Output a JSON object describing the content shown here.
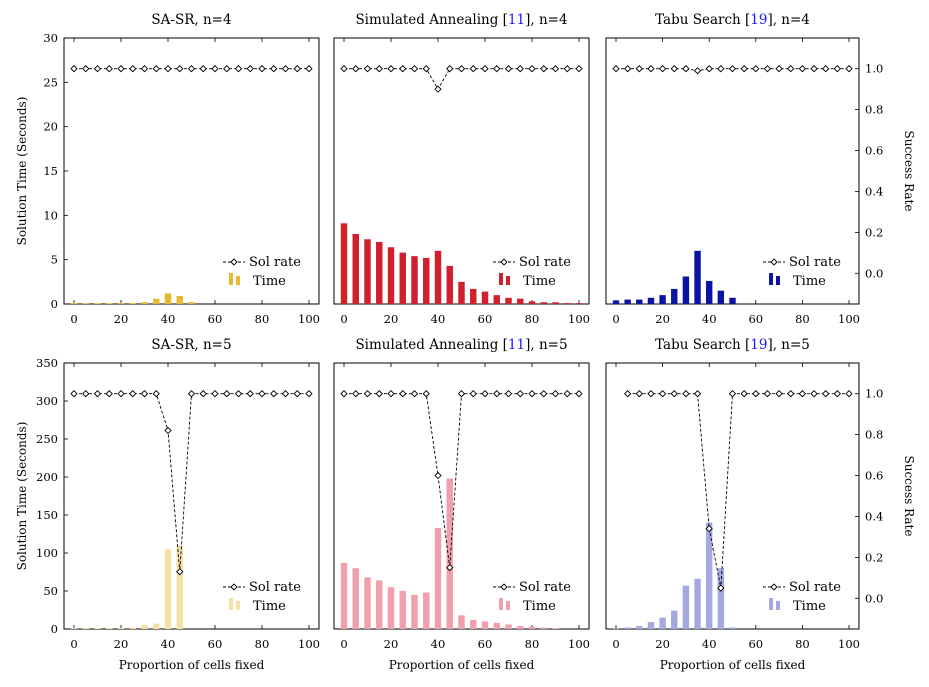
{
  "x_axis_title": "Proportion of cells fixed",
  "y_left_title": "Solution Time (Seconds)",
  "y_right_title": "Success Rate",
  "legend": {
    "sol_rate": "Sol rate",
    "time": "Time"
  },
  "colors": {
    "sasr": "#e8b830",
    "sa": "#d0202e",
    "tabu": "#0a14a0",
    "sasr_light": "#f5e0a8",
    "sa_light": "#f0a0ac",
    "tabu_light": "#a4a8e0",
    "line": "#000000"
  },
  "chart_data": [
    {
      "type": "bar",
      "title_pre": "SA-SR, n=4",
      "cite": "",
      "title_post": "",
      "row": "top",
      "color": "sasr",
      "x": [
        0,
        5,
        10,
        15,
        20,
        25,
        30,
        35,
        40,
        45,
        50,
        55,
        60,
        65,
        70,
        75,
        80,
        85,
        90,
        95,
        100
      ],
      "time": [
        0.05,
        0.05,
        0.05,
        0.05,
        0.1,
        0.1,
        0.2,
        0.6,
        1.2,
        0.9,
        0.2,
        0,
        0,
        0,
        0,
        0,
        0,
        0,
        0,
        0,
        0
      ],
      "time_x": [
        0,
        5,
        10,
        15,
        20,
        25,
        30,
        35,
        40,
        45,
        50
      ],
      "time_vals": [
        0.05,
        0.05,
        0.05,
        0.05,
        0.1,
        0.1,
        0.2,
        0.6,
        1.2,
        0.9,
        0.2
      ],
      "sol_x": [
        0,
        5,
        10,
        15,
        20,
        25,
        30,
        35,
        40,
        45,
        50,
        55,
        60,
        65,
        70,
        75,
        80,
        85,
        90,
        95,
        100
      ],
      "sol_rate": [
        1,
        1,
        1,
        1,
        1,
        1,
        1,
        1,
        1,
        1,
        1,
        1,
        1,
        1,
        1,
        1,
        1,
        1,
        1,
        1,
        1
      ],
      "ylim": [
        0,
        30
      ],
      "y2lim": [
        -0.15,
        1.15
      ]
    },
    {
      "type": "bar",
      "title_pre": "Simulated Annealing [",
      "cite": "11",
      "title_post": "], n=4",
      "row": "top",
      "color": "sa",
      "time_x": [
        0,
        5,
        10,
        15,
        20,
        25,
        30,
        35,
        40,
        45,
        50,
        55,
        60,
        65,
        70,
        75,
        80,
        85,
        90,
        95,
        100
      ],
      "time_vals": [
        9.1,
        7.9,
        7.3,
        7.0,
        6.4,
        5.8,
        5.4,
        5.2,
        6.0,
        4.3,
        2.5,
        1.7,
        1.4,
        1.0,
        0.7,
        0.6,
        0.3,
        0.2,
        0.2,
        0.1,
        0.1
      ],
      "sol_x": [
        0,
        5,
        10,
        15,
        20,
        25,
        30,
        35,
        40,
        45,
        50,
        55,
        60,
        65,
        70,
        75,
        80,
        85,
        90,
        95,
        100
      ],
      "sol_rate": [
        1,
        1,
        1,
        1,
        1,
        1,
        1,
        1,
        0.9,
        1,
        1,
        1,
        1,
        1,
        1,
        1,
        1,
        1,
        1,
        1,
        1
      ],
      "ylim": [
        0,
        30
      ],
      "y2lim": [
        -0.15,
        1.15
      ]
    },
    {
      "type": "bar",
      "title_pre": "Tabu Search [",
      "cite": "19",
      "title_post": "], n=4",
      "row": "top",
      "color": "tabu",
      "time_x": [
        0,
        5,
        10,
        15,
        20,
        25,
        30,
        35,
        40,
        45,
        50
      ],
      "time_vals": [
        0.4,
        0.5,
        0.5,
        0.7,
        1.0,
        1.7,
        3.1,
        6.0,
        2.6,
        1.5,
        0.7
      ],
      "sol_x": [
        0,
        5,
        10,
        15,
        20,
        25,
        30,
        35,
        40,
        45,
        50,
        55,
        60,
        65,
        70,
        75,
        80,
        85,
        90,
        95,
        100
      ],
      "sol_rate": [
        1,
        1,
        1,
        1,
        1,
        1,
        1,
        0.99,
        1,
        1,
        1,
        1,
        1,
        1,
        1,
        1,
        1,
        1,
        1,
        1,
        1
      ],
      "ylim": [
        0,
        30
      ],
      "y2lim": [
        -0.15,
        1.15
      ]
    },
    {
      "type": "bar",
      "title_pre": "SA-SR, n=5",
      "cite": "",
      "title_post": "",
      "row": "bottom",
      "color": "sasr_light",
      "time_x": [
        0,
        5,
        10,
        15,
        20,
        25,
        30,
        35,
        40,
        45
      ],
      "time_vals": [
        0.5,
        0.5,
        1,
        1,
        1,
        2,
        5,
        7,
        105,
        110
      ],
      "sol_x": [
        0,
        5,
        10,
        15,
        20,
        25,
        30,
        35,
        40,
        45,
        50,
        55,
        60,
        65,
        70,
        75,
        80,
        85,
        90,
        95,
        100
      ],
      "sol_rate": [
        1,
        1,
        1,
        1,
        1,
        1,
        1,
        1,
        0.82,
        0.13,
        1,
        1,
        1,
        1,
        1,
        1,
        1,
        1,
        1,
        1,
        1
      ],
      "ylim": [
        0,
        350
      ],
      "y2lim": [
        -0.15,
        1.15
      ]
    },
    {
      "type": "bar",
      "title_pre": "Simulated Annealing [",
      "cite": "11",
      "title_post": "], n=5",
      "row": "bottom",
      "color": "sa_light",
      "time_x": [
        0,
        5,
        10,
        15,
        20,
        25,
        30,
        35,
        40,
        45,
        50,
        55,
        60,
        65,
        70,
        75,
        80,
        85,
        90
      ],
      "time_vals": [
        87,
        80,
        68,
        64,
        55,
        50,
        45,
        48,
        133,
        198,
        18,
        12,
        10,
        8,
        6,
        4,
        3,
        2,
        1
      ],
      "sol_x": [
        0,
        5,
        10,
        15,
        20,
        25,
        30,
        35,
        40,
        45,
        50,
        55,
        60,
        65,
        70,
        75,
        80,
        85,
        90,
        95,
        100
      ],
      "sol_rate": [
        1,
        1,
        1,
        1,
        1,
        1,
        1,
        1,
        0.6,
        0.15,
        1,
        1,
        1,
        1,
        1,
        1,
        1,
        1,
        1,
        1,
        1
      ],
      "ylim": [
        0,
        350
      ],
      "y2lim": [
        -0.15,
        1.15
      ]
    },
    {
      "type": "bar",
      "title_pre": "Tabu Search [",
      "cite": "19",
      "title_post": "], n=5",
      "row": "bottom",
      "color": "tabu_light",
      "time_x": [
        0,
        5,
        10,
        15,
        20,
        25,
        30,
        35,
        40,
        45,
        50
      ],
      "time_vals": [
        0.5,
        2,
        4,
        9,
        15,
        24,
        57,
        66,
        140,
        80,
        2
      ],
      "sol_x": [
        5,
        10,
        15,
        20,
        25,
        30,
        35,
        40,
        45,
        50,
        55,
        60,
        65,
        70,
        75,
        80,
        85,
        90,
        95,
        100
      ],
      "sol_rate": [
        1,
        1,
        1,
        1,
        1,
        1,
        1,
        0.34,
        0.05,
        1,
        1,
        1,
        1,
        1,
        1,
        1,
        1,
        1,
        1,
        1
      ],
      "ylim": [
        0,
        350
      ],
      "y2lim": [
        -0.15,
        1.15
      ]
    }
  ],
  "y_left_ticks": {
    "top": [
      0,
      5,
      10,
      15,
      20,
      25,
      30
    ],
    "bottom": [
      0,
      50,
      100,
      150,
      200,
      250,
      300,
      350
    ]
  },
  "y_right_ticks": [
    0.0,
    0.2,
    0.4,
    0.6,
    0.8,
    1.0
  ],
  "x_ticks": [
    0,
    20,
    40,
    60,
    80,
    100
  ]
}
